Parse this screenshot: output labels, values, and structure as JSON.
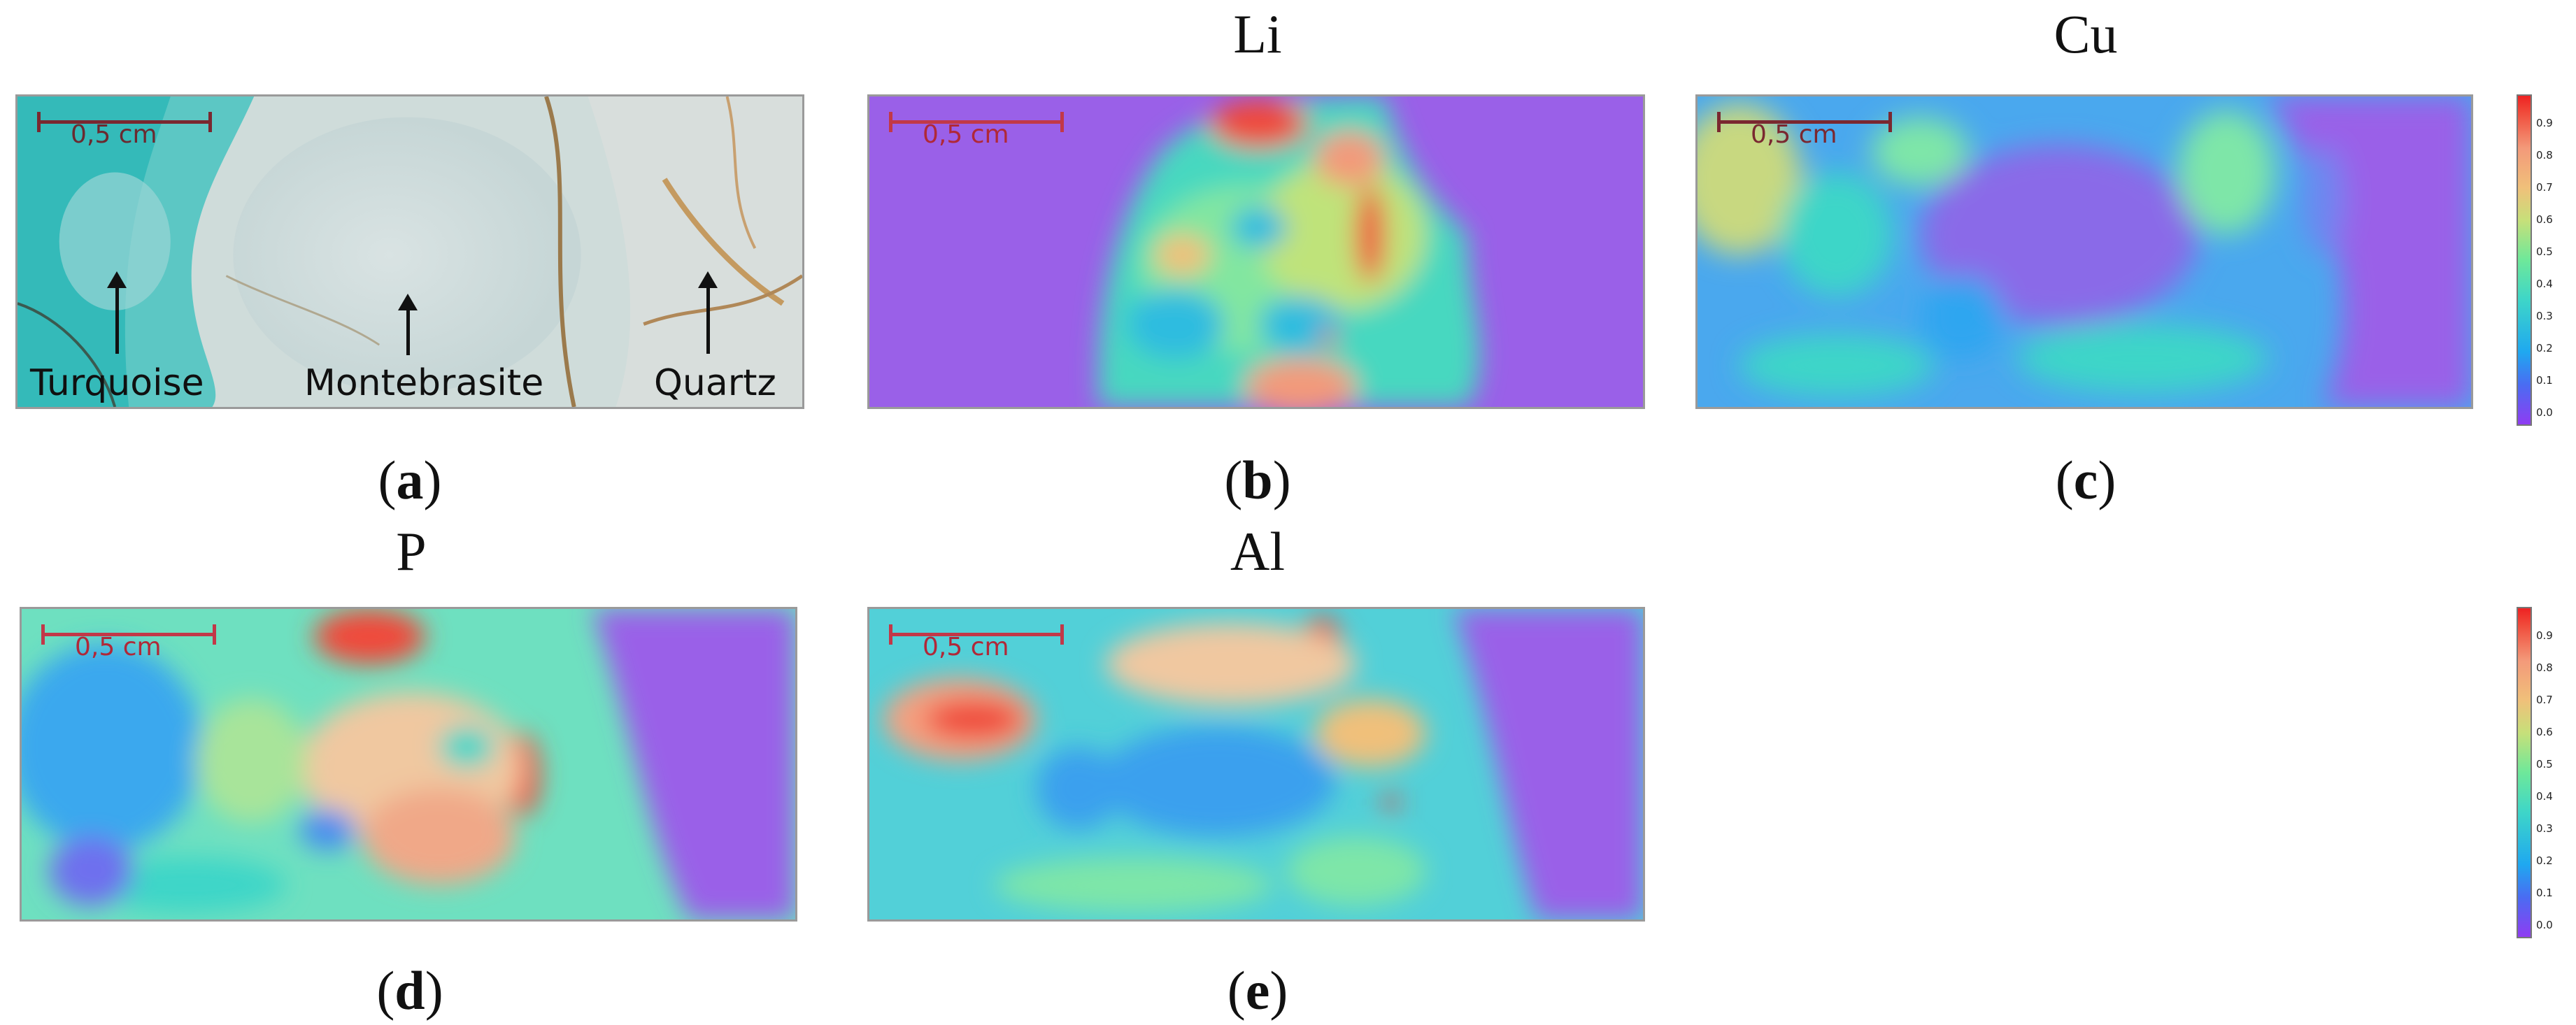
{
  "figure": {
    "panels": [
      {
        "id": "a",
        "caption_letter": "a",
        "element": "",
        "scale_label": "0,5 cm",
        "labels": [
          "Turquoise",
          "Montebrasite",
          "Quartz"
        ]
      },
      {
        "id": "b",
        "caption_letter": "b",
        "element": "Li",
        "scale_label": "0,5 cm"
      },
      {
        "id": "c",
        "caption_letter": "c",
        "element": "Cu",
        "scale_label": "0,5 cm"
      },
      {
        "id": "d",
        "caption_letter": "d",
        "element": "P",
        "scale_label": "0,5 cm"
      },
      {
        "id": "e",
        "caption_letter": "e",
        "element": "Al",
        "scale_label": "0,5 cm"
      }
    ],
    "colorbar": {
      "ticks": [
        "0.9",
        "0.8",
        "0.7",
        "0.6",
        "0.5",
        "0.4",
        "0.3",
        "0.2",
        "0.1",
        "0.0"
      ],
      "colors": {
        "low": "#8f3cf2",
        "mid": "#6ee89a",
        "high": "#ee2222"
      }
    }
  }
}
